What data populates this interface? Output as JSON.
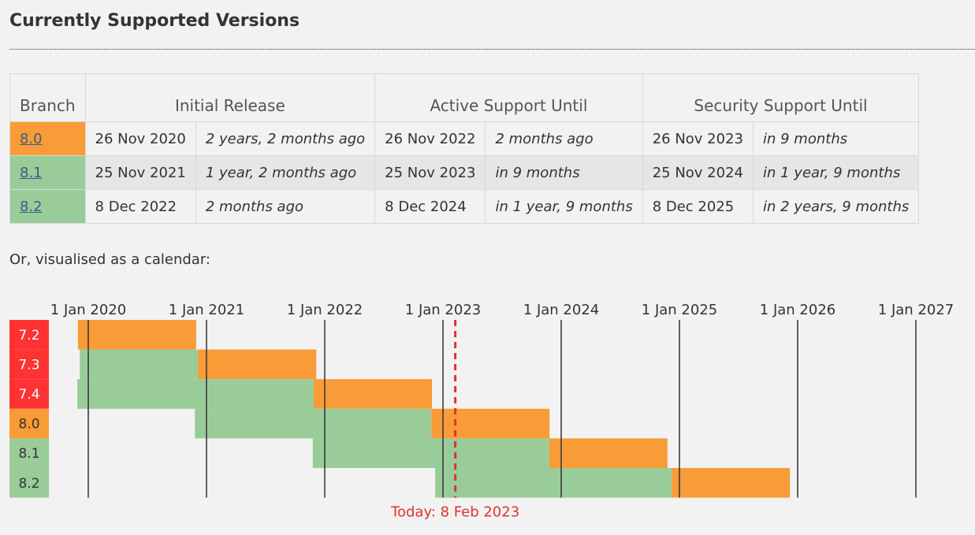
{
  "section_title": "Currently Supported Versions",
  "table": {
    "headers": {
      "branch": "Branch",
      "initial_release": "Initial Release",
      "active_support": "Active Support Until",
      "security_support": "Security Support Until"
    },
    "rows": [
      {
        "branch": "8.0",
        "status": "security",
        "release_date": "26 Nov 2020",
        "release_rel": "2 years, 2 months ago",
        "active_date": "26 Nov 2022",
        "active_rel": "2 months ago",
        "security_date": "26 Nov 2023",
        "security_rel": "in 9 months"
      },
      {
        "branch": "8.1",
        "status": "active",
        "release_date": "25 Nov 2021",
        "release_rel": "1 year, 2 months ago",
        "active_date": "25 Nov 2023",
        "active_rel": "in 9 months",
        "security_date": "25 Nov 2024",
        "security_rel": "in 1 year, 9 months"
      },
      {
        "branch": "8.2",
        "status": "active",
        "release_date": "8 Dec 2022",
        "release_rel": "2 months ago",
        "active_date": "8 Dec 2024",
        "active_rel": "in 1 year, 9 months",
        "security_date": "8 Dec 2025",
        "security_rel": "in 2 years, 9 months"
      }
    ]
  },
  "calendar_intro": "Or, visualised as a calendar:",
  "calendar": {
    "year_labels": [
      "1 Jan 2020",
      "1 Jan 2021",
      "1 Jan 2022",
      "1 Jan 2023",
      "1 Jan 2024",
      "1 Jan 2025",
      "1 Jan 2026",
      "1 Jan 2027"
    ],
    "today_label": "Today: 8 Feb 2023",
    "today": "2023-02-08",
    "branches": [
      {
        "label": "7.2",
        "status": "eol",
        "release": "2019-11-30",
        "active_until": "2019-11-30",
        "security_until": "2020-11-30"
      },
      {
        "label": "7.3",
        "status": "eol",
        "release": "2019-12-06",
        "active_until": "2020-12-06",
        "security_until": "2021-12-06"
      },
      {
        "label": "7.4",
        "status": "eol",
        "release": "2019-11-28",
        "active_until": "2021-11-28",
        "security_until": "2022-11-28"
      },
      {
        "label": "8.0",
        "status": "security",
        "release": "2020-11-26",
        "active_until": "2022-11-26",
        "security_until": "2023-11-26"
      },
      {
        "label": "8.1",
        "status": "active",
        "release": "2021-11-25",
        "active_until": "2023-11-25",
        "security_until": "2024-11-25"
      },
      {
        "label": "8.2",
        "status": "active",
        "release": "2022-12-08",
        "active_until": "2024-12-08",
        "security_until": "2025-12-08"
      }
    ]
  },
  "colors": {
    "eol": "#ff3333",
    "security": "#f99b36",
    "active": "#99cc99",
    "today": "#dd3333",
    "link": "#3d5a8a"
  }
}
